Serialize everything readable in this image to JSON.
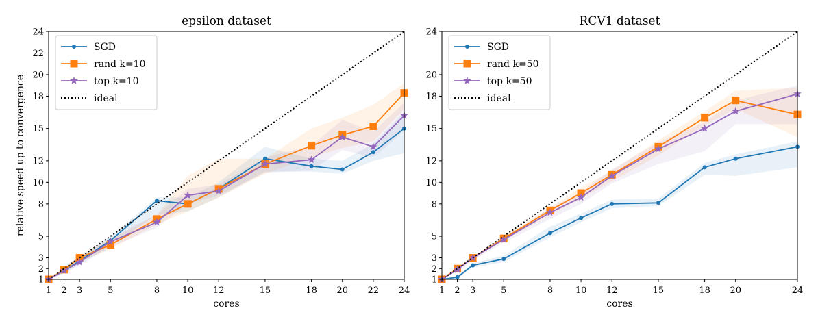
{
  "chart_data": [
    {
      "type": "line",
      "title": "epsilon dataset",
      "xlabel": "cores",
      "ylabel": "relative speed up to convergence",
      "x_ticks": [
        1,
        2,
        3,
        5,
        8,
        10,
        12,
        15,
        18,
        20,
        22,
        24
      ],
      "y_ticks": [
        1,
        2,
        3,
        5,
        8,
        10,
        12,
        15,
        18,
        20,
        22,
        24
      ],
      "xlim": [
        1,
        24
      ],
      "ylim": [
        1,
        24
      ],
      "grid": false,
      "legend_position": "top-left",
      "series": [
        {
          "name": "SGD",
          "color": "#1f77b4",
          "marker": "circle",
          "x": [
            1,
            2,
            3,
            5,
            8,
            10,
            12,
            15,
            18,
            20,
            22,
            24
          ],
          "y": [
            1.0,
            1.8,
            2.7,
            4.6,
            8.3,
            8.0,
            9.4,
            12.2,
            11.5,
            11.2,
            12.8,
            15.0
          ],
          "band_low": [
            1.0,
            1.6,
            2.4,
            4.1,
            7.0,
            7.3,
            8.6,
            11.0,
            11.0,
            10.8,
            12.0,
            12.7
          ],
          "band_high": [
            1.0,
            2.0,
            3.0,
            5.0,
            8.6,
            8.6,
            10.0,
            13.3,
            12.2,
            12.0,
            13.6,
            16.5
          ]
        },
        {
          "name": "rand k=10",
          "color": "#ff7f0e",
          "marker": "square",
          "x": [
            1,
            2,
            3,
            5,
            8,
            10,
            12,
            15,
            18,
            20,
            22,
            24
          ],
          "y": [
            1.0,
            1.9,
            3.0,
            4.2,
            6.6,
            8.0,
            9.4,
            11.7,
            13.4,
            14.4,
            15.2,
            18.3
          ],
          "band_low": [
            1.0,
            1.7,
            2.6,
            3.8,
            6.1,
            7.3,
            8.6,
            10.8,
            12.3,
            13.2,
            13.8,
            16.8
          ],
          "band_high": [
            1.0,
            2.1,
            3.3,
            4.7,
            7.0,
            10.6,
            12.2,
            12.2,
            15.0,
            16.0,
            17.2,
            19.2
          ]
        },
        {
          "name": "top k=10",
          "color": "#9467bd",
          "marker": "star",
          "x": [
            1,
            2,
            3,
            5,
            8,
            10,
            12,
            15,
            18,
            20,
            22,
            24
          ],
          "y": [
            1.0,
            1.8,
            2.6,
            4.5,
            6.3,
            8.8,
            9.2,
            11.7,
            12.1,
            14.2,
            13.3,
            16.2
          ],
          "band_low": [
            1.0,
            1.6,
            2.3,
            4.0,
            5.8,
            8.0,
            8.8,
            10.9,
            11.1,
            13.0,
            12.3,
            14.8
          ],
          "band_high": [
            1.0,
            2.0,
            2.9,
            4.9,
            7.0,
            9.4,
            9.8,
            12.3,
            13.4,
            15.8,
            14.7,
            17.4
          ]
        },
        {
          "name": "ideal",
          "color": "#000000",
          "marker": "none",
          "dotted": true,
          "x": [
            1,
            24
          ],
          "y": [
            1,
            24
          ]
        }
      ]
    },
    {
      "type": "line",
      "title": "RCV1 dataset",
      "xlabel": "cores",
      "ylabel": "",
      "x_ticks": [
        1,
        2,
        3,
        5,
        8,
        10,
        12,
        15,
        18,
        20,
        24
      ],
      "y_ticks": [
        1,
        2,
        3,
        5,
        8,
        10,
        12,
        15,
        18,
        20,
        24
      ],
      "xlim": [
        1,
        24
      ],
      "ylim": [
        1,
        24
      ],
      "grid": false,
      "legend_position": "top-left",
      "series": [
        {
          "name": "SGD",
          "color": "#1f77b4",
          "marker": "circle",
          "x": [
            1,
            2,
            3,
            5,
            8,
            10,
            12,
            15,
            18,
            20,
            24
          ],
          "y": [
            1.0,
            1.2,
            2.3,
            2.9,
            5.3,
            6.7,
            8.0,
            8.1,
            11.4,
            12.2,
            13.3
          ],
          "band_low": [
            1.0,
            1.1,
            2.1,
            2.6,
            4.9,
            6.3,
            7.6,
            7.8,
            10.7,
            10.6,
            11.4
          ],
          "band_high": [
            1.0,
            1.3,
            2.5,
            3.2,
            5.9,
            7.1,
            8.4,
            8.5,
            11.8,
            12.6,
            13.8
          ]
        },
        {
          "name": "rand k=50",
          "color": "#ff7f0e",
          "marker": "square",
          "x": [
            1,
            2,
            3,
            5,
            8,
            10,
            12,
            15,
            18,
            20,
            24
          ],
          "y": [
            1.0,
            2.0,
            3.0,
            4.8,
            7.4,
            9.0,
            10.7,
            13.3,
            16.0,
            17.6,
            16.3
          ],
          "band_low": [
            1.0,
            1.9,
            2.9,
            4.6,
            7.0,
            8.5,
            10.1,
            12.5,
            15.3,
            16.8,
            14.2
          ],
          "band_high": [
            1.0,
            2.1,
            3.1,
            5.0,
            7.7,
            9.5,
            11.1,
            13.9,
            16.6,
            18.5,
            18.8
          ]
        },
        {
          "name": "top k=50",
          "color": "#9467bd",
          "marker": "star",
          "x": [
            1,
            2,
            3,
            5,
            8,
            10,
            12,
            15,
            18,
            20,
            24
          ],
          "y": [
            1.0,
            1.9,
            3.0,
            4.7,
            7.2,
            8.6,
            10.6,
            13.1,
            15.0,
            16.6,
            18.2
          ],
          "band_low": [
            1.0,
            1.8,
            2.8,
            4.4,
            6.6,
            8.0,
            9.9,
            11.7,
            12.9,
            15.4,
            15.4
          ],
          "band_high": [
            1.0,
            2.0,
            3.1,
            4.9,
            7.6,
            9.1,
            11.2,
            13.7,
            15.6,
            17.6,
            19.0
          ]
        },
        {
          "name": "ideal",
          "color": "#000000",
          "marker": "none",
          "dotted": true,
          "x": [
            1,
            24
          ],
          "y": [
            1,
            24
          ]
        }
      ]
    }
  ]
}
